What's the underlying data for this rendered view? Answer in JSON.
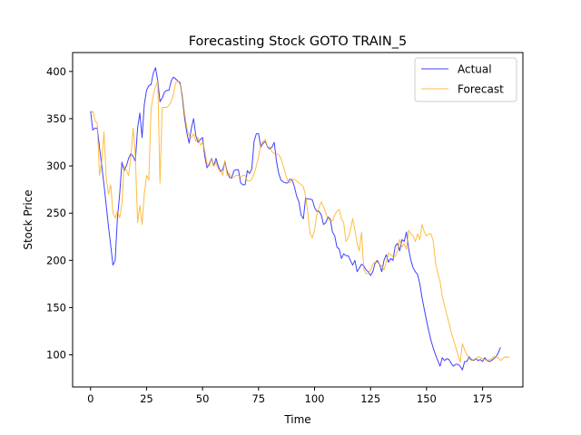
{
  "chart_data": {
    "type": "line",
    "title": "Forecasting Stock GOTO TRAIN_5",
    "xlabel": "Time",
    "ylabel": "Stock Price",
    "xlim": [
      -8,
      193
    ],
    "ylim": [
      66,
      420
    ],
    "xticks": [
      0,
      25,
      50,
      75,
      100,
      125,
      150,
      175
    ],
    "yticks": [
      100,
      150,
      200,
      250,
      300,
      350,
      400
    ],
    "grid": false,
    "legend_position": "top-right",
    "series": [
      {
        "name": "Actual",
        "color": "#0000ff",
        "values": [
          358,
          338,
          340,
          340,
          320,
          300,
          280,
          258,
          236,
          216,
          195,
          200,
          245,
          270,
          304,
          295,
          300,
          308,
          313,
          310,
          305,
          340,
          356,
          330,
          365,
          380,
          385,
          386,
          398,
          404,
          390,
          368,
          372,
          378,
          380,
          380,
          390,
          394,
          392,
          390,
          388,
          372,
          350,
          335,
          324,
          340,
          350,
          332,
          325,
          328,
          330,
          310,
          298,
          302,
          308,
          300,
          308,
          300,
          294,
          296,
          304,
          294,
          288,
          287,
          295,
          296,
          296,
          282,
          280,
          280,
          295,
          292,
          297,
          326,
          334,
          334,
          320,
          324,
          326,
          320,
          318,
          320,
          325,
          305,
          292,
          285,
          283,
          282,
          282,
          286,
          285,
          278,
          268,
          262,
          248,
          244,
          266,
          265,
          265,
          264,
          256,
          252,
          252,
          248,
          238,
          240,
          246,
          244,
          230,
          226,
          214,
          212,
          202,
          207,
          205,
          205,
          200,
          195,
          200,
          188,
          192,
          196,
          194,
          190,
          188,
          184,
          188,
          197,
          200,
          196,
          188,
          200,
          206,
          198,
          202,
          200,
          215,
          218,
          210,
          222,
          220,
          230,
          212,
          200,
          192,
          188,
          185,
          175,
          160,
          148,
          136,
          125,
          115,
          107,
          100,
          94,
          88,
          97,
          94,
          96,
          95,
          91,
          88,
          90,
          90,
          88,
          84,
          93,
          93,
          98,
          95,
          94,
          96,
          94,
          95,
          93,
          97,
          94,
          93,
          94,
          96,
          98,
          102,
          108
        ]
      },
      {
        "name": "Forecast",
        "color": "#ffa500",
        "values": [
          355,
          358,
          348,
          345,
          290,
          305,
          336,
          288,
          270,
          280,
          250,
          245,
          252,
          245,
          260,
          300,
          295,
          290,
          310,
          340,
          312,
          240,
          258,
          238,
          270,
          290,
          285,
          360,
          375,
          384,
          390,
          282,
          362,
          362,
          362,
          364,
          368,
          376,
          388,
          390,
          386,
          375,
          355,
          340,
          332,
          330,
          334,
          326,
          330,
          322,
          325,
          316,
          302,
          300,
          308,
          300,
          304,
          296,
          296,
          290,
          306,
          290,
          292,
          288,
          288,
          290,
          290,
          288,
          290,
          290,
          284,
          284,
          286,
          292,
          300,
          310,
          322,
          326,
          328,
          320,
          320,
          315,
          313,
          313,
          312,
          308,
          300,
          292,
          284,
          282,
          286,
          286,
          284,
          282,
          280,
          278,
          268,
          250,
          228,
          224,
          232,
          248,
          256,
          262,
          257,
          250,
          244,
          242,
          242,
          248,
          252,
          254,
          244,
          240,
          220,
          224,
          232,
          244,
          232,
          218,
          210,
          230,
          190,
          186,
          186,
          190,
          196,
          198,
          198,
          196,
          194,
          190,
          198,
          208,
          206,
          204,
          204,
          210,
          222,
          214,
          218,
          212,
          232,
          228,
          226,
          220,
          228,
          222,
          238,
          230,
          226,
          228,
          228,
          220,
          198,
          186,
          178,
          162,
          152,
          143,
          134,
          124,
          116,
          108,
          100,
          92,
          112,
          105,
          100,
          96,
          94,
          95,
          96,
          98,
          97,
          96,
          95,
          94,
          95,
          96,
          98,
          98,
          97,
          94,
          96,
          98,
          97,
          98
        ]
      }
    ]
  }
}
